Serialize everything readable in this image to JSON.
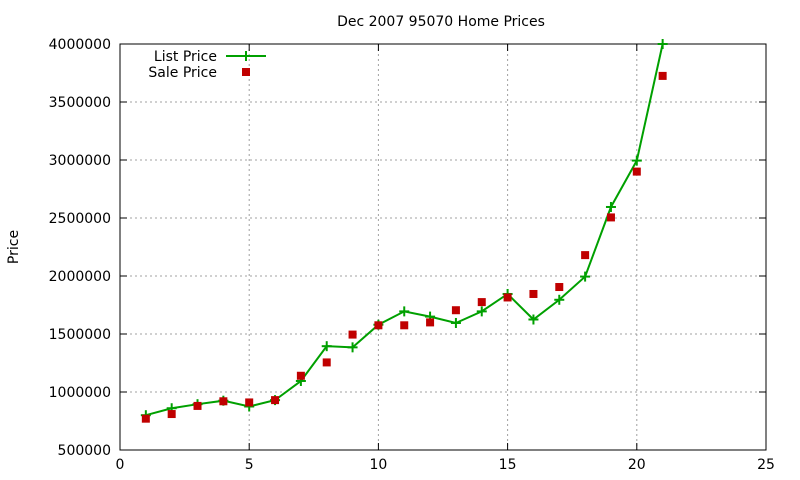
{
  "chart_data": {
    "type": "line",
    "title": "Dec 2007 95070 Home Prices",
    "xlabel": "",
    "ylabel": "Price",
    "xlim": [
      0,
      25
    ],
    "ylim": [
      500000,
      4000000
    ],
    "xticks": [
      "0",
      "5",
      "10",
      "15",
      "20",
      "25"
    ],
    "yticks": [
      "500000",
      "1000000",
      "1500000",
      "2000000",
      "2500000",
      "3000000",
      "3500000",
      "4000000"
    ],
    "grid": true,
    "legend_position": "top-left",
    "series": [
      {
        "name": "List Price",
        "style": "line-with-plus-markers",
        "color": "#00a000",
        "x": [
          1,
          2,
          3,
          4,
          5,
          6,
          7,
          8,
          9,
          10,
          11,
          12,
          13,
          14,
          15,
          16,
          17,
          18,
          19,
          20,
          21
        ],
        "y": [
          800000,
          860000,
          895000,
          925000,
          875000,
          930000,
          1095000,
          1395000,
          1385000,
          1580000,
          1695000,
          1650000,
          1595000,
          1695000,
          1845000,
          1625000,
          1795000,
          1995000,
          2595000,
          2995000,
          4000000
        ]
      },
      {
        "name": "Sale Price",
        "style": "square-markers",
        "color": "#c00000",
        "x": [
          1,
          2,
          3,
          4,
          5,
          6,
          7,
          8,
          9,
          10,
          11,
          12,
          13,
          14,
          15,
          16,
          17,
          18,
          19,
          20,
          21
        ],
        "y": [
          770000,
          810000,
          880000,
          920000,
          910000,
          930000,
          1140000,
          1255000,
          1495000,
          1575000,
          1575000,
          1600000,
          1705000,
          1775000,
          1815000,
          1845000,
          1905000,
          2180000,
          2505000,
          2900000,
          3725000
        ]
      }
    ]
  }
}
